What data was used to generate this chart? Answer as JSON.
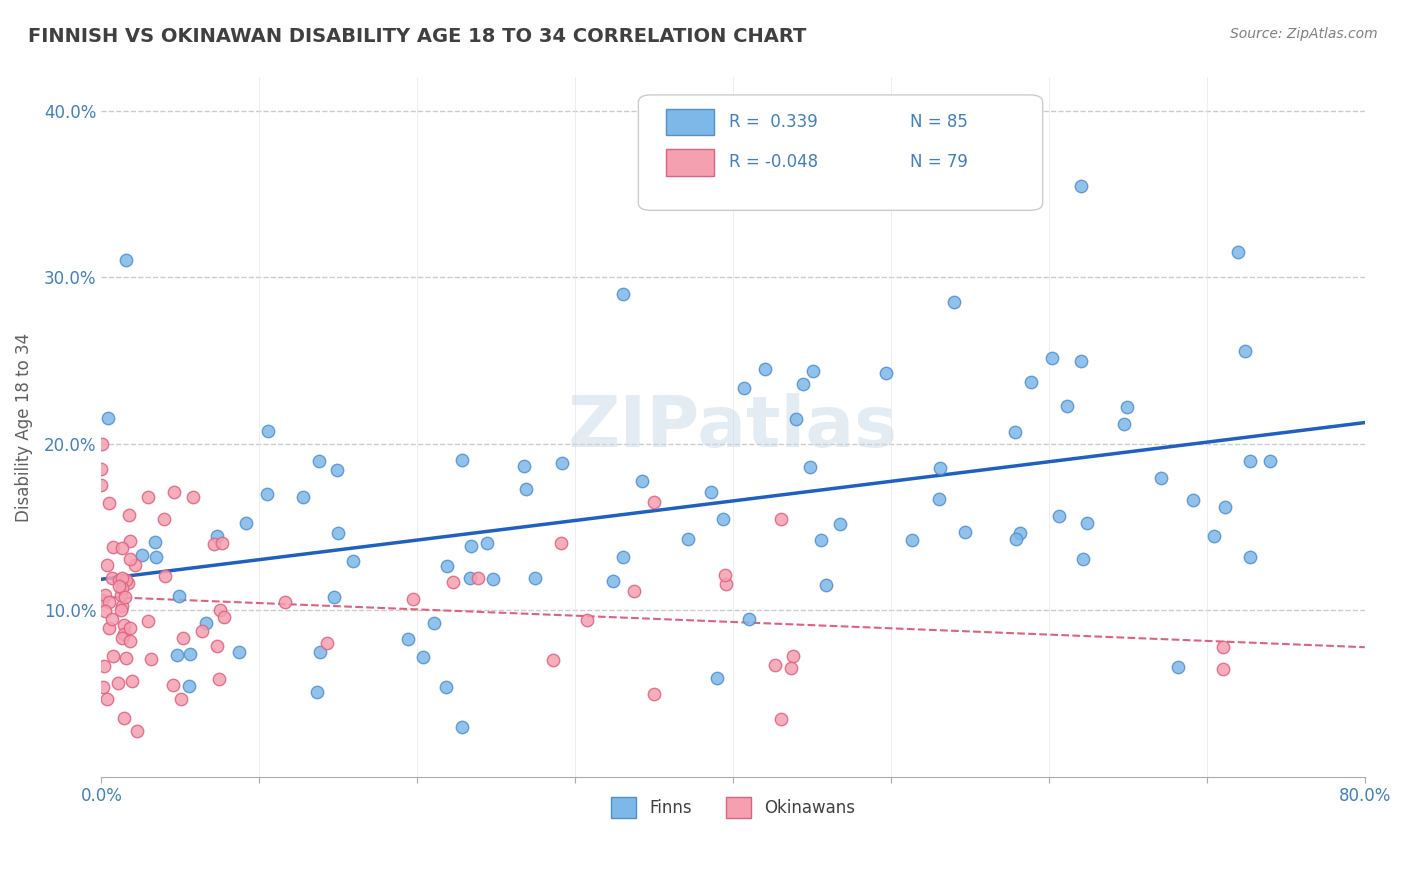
{
  "title": "FINNISH VS OKINAWAN DISABILITY AGE 18 TO 34 CORRELATION CHART",
  "source": "Source: ZipAtlas.com",
  "ylabel": "Disability Age 18 to 34",
  "xlim": [
    0.0,
    0.8
  ],
  "ylim": [
    0.0,
    0.42
  ],
  "yticks": [
    0.0,
    0.1,
    0.2,
    0.3,
    0.4
  ],
  "finns_R": 0.339,
  "finns_N": 85,
  "okinawans_R": -0.048,
  "okinawans_N": 79,
  "finns_color": "#7db8e8",
  "finns_edge_color": "#5090d0",
  "finns_line_color": "#2060c0",
  "okinawans_color": "#f4a0b0",
  "okinawans_edge_color": "#e06080",
  "okinawans_line_color": "#e06080",
  "watermark": "ZIPatlas",
  "background_color": "#ffffff",
  "grid_color": "#cccccc",
  "title_color": "#404040",
  "axis_label_color": "#4080c0",
  "legend_R_color": "#4080c0",
  "legend_labels_R": [
    "R =  0.339",
    "R = -0.048"
  ],
  "legend_labels_N": [
    "N = 85",
    "N = 79"
  ]
}
